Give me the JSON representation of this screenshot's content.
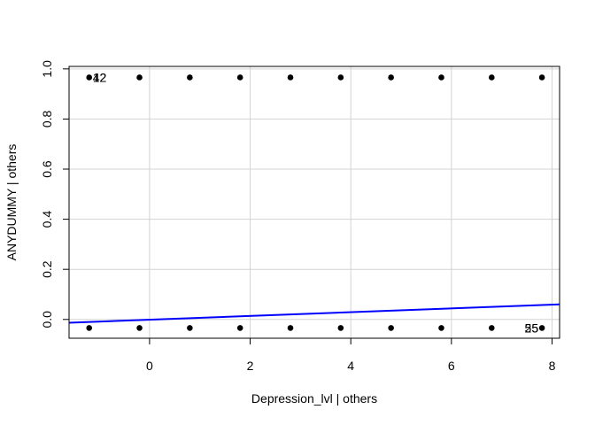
{
  "chart_data": {
    "type": "scatter",
    "title": "",
    "xlabel": "Depression_lvl | others",
    "ylabel": "ANYDUMMY  | others",
    "xlim": [
      -1.6,
      8.15
    ],
    "ylim": [
      -0.075,
      1.01
    ],
    "xticks": [
      0,
      2,
      4,
      6,
      8
    ],
    "yticks": [
      0.0,
      0.2,
      0.4,
      0.6,
      0.8,
      1.0
    ],
    "xtick_labels": [
      "0",
      "2",
      "4",
      "6",
      "8"
    ],
    "ytick_labels": [
      "0.0",
      "0.2",
      "0.4",
      "0.6",
      "0.8",
      "1.0"
    ],
    "grid": true,
    "points": [
      {
        "x": -1.2,
        "y": 0.966
      },
      {
        "x": -0.2,
        "y": 0.966
      },
      {
        "x": 0.8,
        "y": 0.966
      },
      {
        "x": 1.8,
        "y": 0.966
      },
      {
        "x": 2.8,
        "y": 0.966
      },
      {
        "x": 3.8,
        "y": 0.966
      },
      {
        "x": 4.8,
        "y": 0.966
      },
      {
        "x": 5.8,
        "y": 0.966
      },
      {
        "x": 6.8,
        "y": 0.966
      },
      {
        "x": 7.8,
        "y": 0.966
      },
      {
        "x": -1.2,
        "y": -0.034
      },
      {
        "x": -0.2,
        "y": -0.034
      },
      {
        "x": 0.8,
        "y": -0.034
      },
      {
        "x": 1.8,
        "y": -0.034
      },
      {
        "x": 2.8,
        "y": -0.034
      },
      {
        "x": 3.8,
        "y": -0.034
      },
      {
        "x": 4.8,
        "y": -0.034
      },
      {
        "x": 5.8,
        "y": -0.034
      },
      {
        "x": 6.8,
        "y": -0.034
      },
      {
        "x": 7.8,
        "y": -0.034
      }
    ],
    "point_labels": [
      {
        "text": "42",
        "x": -1.2,
        "y": 0.966,
        "anchor": "start"
      },
      {
        "text": "12",
        "x": -1.2,
        "y": 0.966,
        "anchor": "start"
      },
      {
        "text": "55",
        "x": 7.8,
        "y": -0.034,
        "anchor": "end"
      },
      {
        "text": "25",
        "x": 7.8,
        "y": -0.034,
        "anchor": "end"
      }
    ],
    "fit_line": {
      "x": [
        -1.6,
        8.15
      ],
      "y": [
        -0.013,
        0.06
      ],
      "color": "#0000ff"
    },
    "colors": {
      "points": "#000000",
      "grid": "#d3d3d3",
      "axis": "#000000"
    }
  }
}
